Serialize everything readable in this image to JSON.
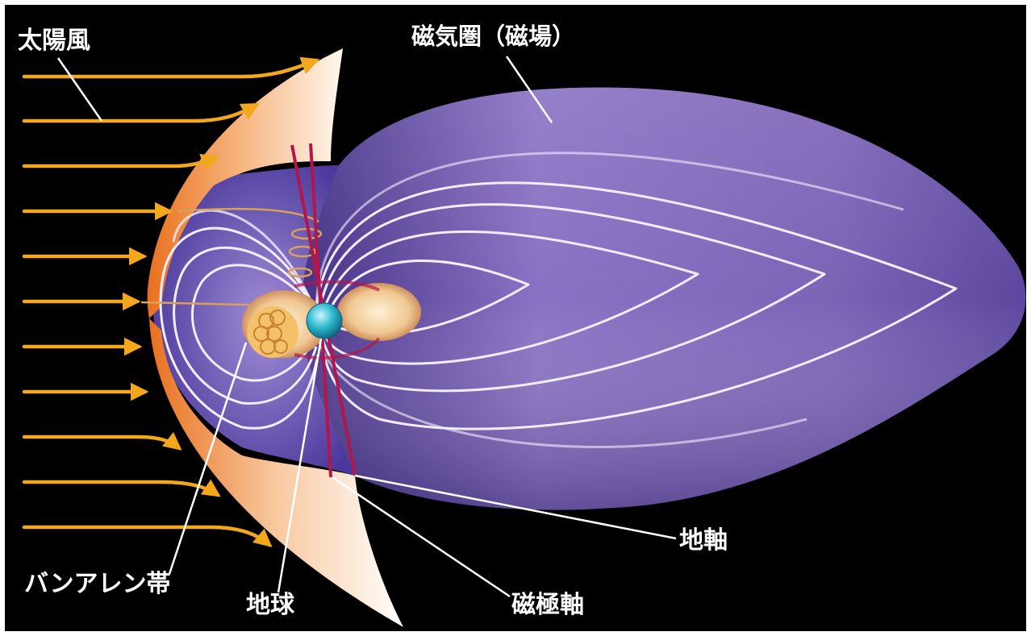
{
  "labels": {
    "solar_wind": "太陽風",
    "magnetosphere": "磁気圏（磁場）",
    "van_allen_belt": "バンアレン帯",
    "earth": "地球",
    "earth_axis": "地軸",
    "magnetic_axis": "磁極軸"
  },
  "colors": {
    "background": "#000000",
    "frame": "#ffffff",
    "solar_wind_arrow": "#f2a81a",
    "bow_shock_outer": "#f08a2a",
    "bow_shock_inner": "#fff1df",
    "magnetosphere": "#7b63b6",
    "magnetosphere_dark": "#3c2a7e",
    "field_line": "#f3ecff",
    "axis": "#b0174a",
    "earth": "#2fb8cf",
    "belt": "#e7b77c",
    "leader_line": "#ffffff"
  },
  "icons": [
    "earth-icon",
    "solar-wind-arrow-icon"
  ]
}
